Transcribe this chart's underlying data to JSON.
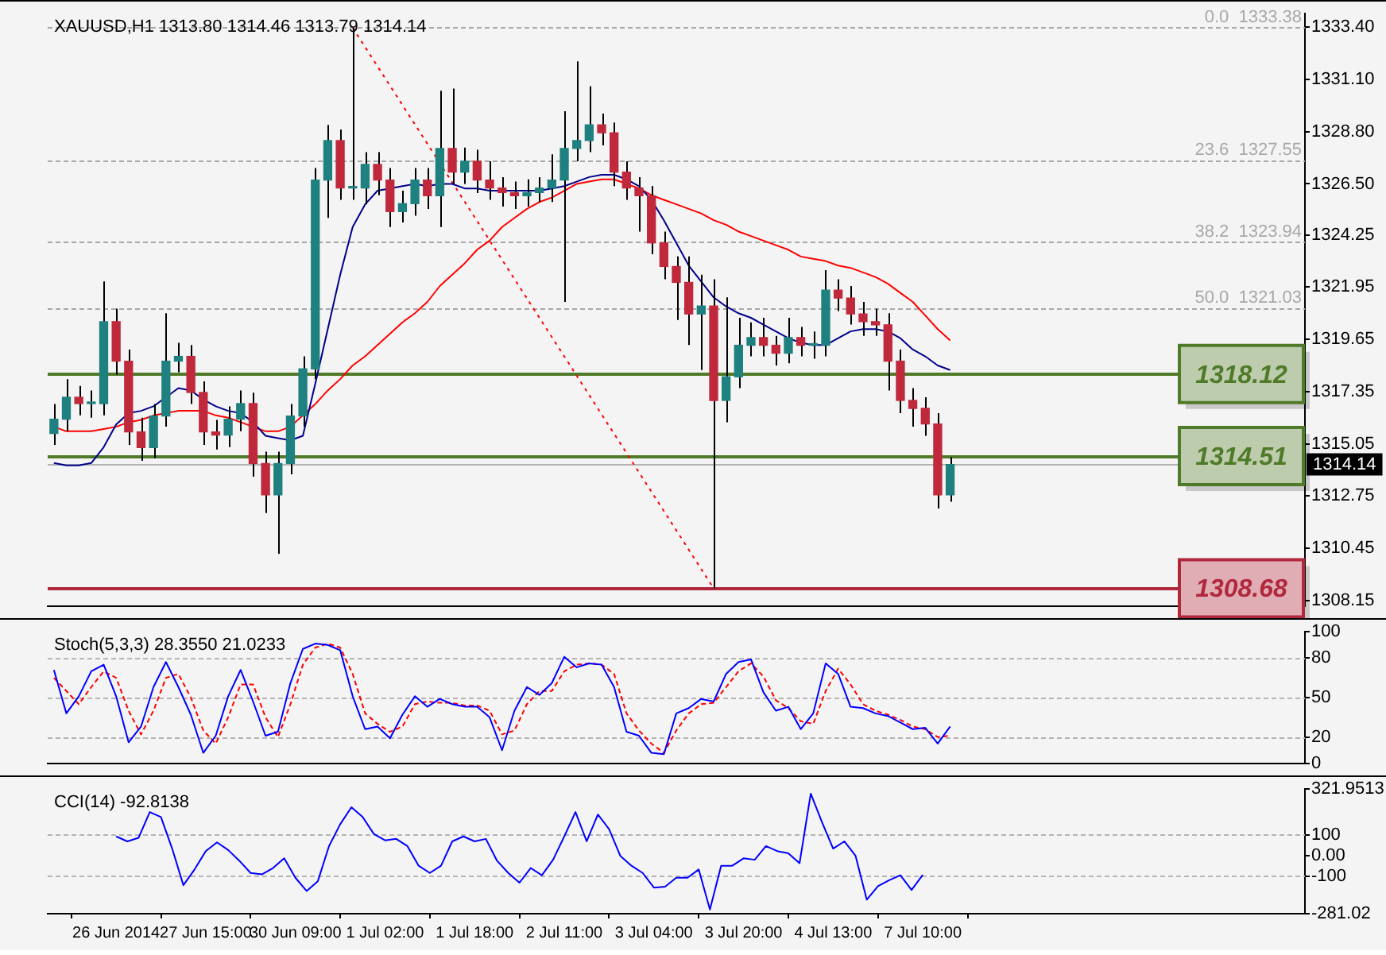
{
  "chart_data": [
    {
      "type": "candlestick",
      "title": "XAUUSD,H1 1313.80 1314.46 1313.79 1314.14",
      "tick_labels": "y",
      "categories": [
        null,
        null,
        null,
        null,
        null,
        null,
        null,
        null,
        null,
        null,
        null,
        null,
        null,
        null,
        null,
        null,
        null,
        null,
        null,
        null,
        null,
        null,
        null,
        null,
        null,
        null,
        null,
        null,
        null,
        null,
        null,
        null,
        null,
        null,
        null,
        null,
        null,
        null,
        null,
        null,
        null,
        null,
        null,
        null,
        null,
        null,
        null,
        null,
        null,
        null,
        null,
        null,
        null,
        null,
        null,
        null,
        null,
        null,
        null,
        null,
        null,
        null,
        null,
        null,
        null,
        null,
        null,
        null,
        null,
        null,
        null,
        null,
        null
      ],
      "ohlc": [
        [
          1315.5,
          1316.8,
          1315.0,
          1316.13
        ],
        [
          1316.13,
          1317.9,
          1315.6,
          1317.1
        ],
        [
          1317.1,
          1317.6,
          1316.3,
          1316.82
        ],
        [
          1316.82,
          1317.4,
          1316.2,
          1316.82
        ],
        [
          1316.82,
          1322.2,
          1316.3,
          1320.43
        ],
        [
          1320.43,
          1321.0,
          1318.1,
          1318.69
        ],
        [
          1318.69,
          1319.2,
          1315.0,
          1315.57
        ],
        [
          1315.57,
          1316.2,
          1314.3,
          1314.88
        ],
        [
          1314.88,
          1316.8,
          1314.4,
          1316.27
        ],
        [
          1316.27,
          1320.8,
          1315.8,
          1318.69
        ],
        [
          1318.69,
          1319.5,
          1318.2,
          1318.9
        ],
        [
          1318.9,
          1319.4,
          1316.8,
          1317.31
        ],
        [
          1317.31,
          1317.8,
          1315.0,
          1315.57
        ],
        [
          1315.57,
          1316.1,
          1314.8,
          1315.43
        ],
        [
          1315.43,
          1316.7,
          1314.9,
          1316.13
        ],
        [
          1316.13,
          1317.4,
          1315.6,
          1316.82
        ],
        [
          1316.82,
          1317.3,
          1313.6,
          1314.18
        ],
        [
          1314.18,
          1314.7,
          1312.0,
          1312.8
        ],
        [
          1312.8,
          1314.7,
          1310.2,
          1314.18
        ],
        [
          1314.18,
          1316.8,
          1313.7,
          1316.27
        ],
        [
          1316.27,
          1318.9,
          1315.8,
          1318.35
        ],
        [
          1318.35,
          1327.2,
          1317.9,
          1326.67
        ],
        [
          1326.67,
          1329.1,
          1325.0,
          1328.41
        ],
        [
          1328.41,
          1328.9,
          1325.8,
          1326.32
        ],
        [
          1326.32,
          1333.38,
          1325.8,
          1326.32
        ],
        [
          1326.32,
          1327.9,
          1325.6,
          1327.36
        ],
        [
          1327.36,
          1327.9,
          1326.0,
          1326.67
        ],
        [
          1326.67,
          1327.2,
          1324.6,
          1325.28
        ],
        [
          1325.28,
          1326.2,
          1324.8,
          1325.63
        ],
        [
          1325.63,
          1327.2,
          1325.1,
          1326.67
        ],
        [
          1326.67,
          1327.2,
          1325.4,
          1325.98
        ],
        [
          1325.98,
          1330.6,
          1324.6,
          1328.06
        ],
        [
          1328.06,
          1330.7,
          1326.5,
          1327.02
        ],
        [
          1327.02,
          1328.1,
          1326.5,
          1327.5
        ],
        [
          1327.5,
          1328.0,
          1326.1,
          1326.67
        ],
        [
          1326.67,
          1327.5,
          1325.8,
          1326.32
        ],
        [
          1326.32,
          1326.8,
          1325.5,
          1326.12
        ],
        [
          1326.12,
          1326.6,
          1325.4,
          1325.98
        ],
        [
          1325.98,
          1326.7,
          1325.5,
          1326.12
        ],
        [
          1326.12,
          1326.8,
          1325.7,
          1326.32
        ],
        [
          1326.32,
          1327.8,
          1325.7,
          1326.67
        ],
        [
          1326.67,
          1329.7,
          1321.3,
          1328.06
        ],
        [
          1328.06,
          1331.9,
          1327.5,
          1328.41
        ],
        [
          1328.41,
          1330.8,
          1327.9,
          1329.1
        ],
        [
          1329.1,
          1329.6,
          1328.2,
          1328.75
        ],
        [
          1328.75,
          1329.2,
          1326.4,
          1327.02
        ],
        [
          1327.02,
          1327.5,
          1325.8,
          1326.32
        ],
        [
          1326.32,
          1326.8,
          1324.4,
          1325.98
        ],
        [
          1325.98,
          1326.4,
          1323.4,
          1323.9
        ],
        [
          1323.9,
          1324.4,
          1322.3,
          1322.86
        ],
        [
          1322.86,
          1323.3,
          1320.5,
          1322.16
        ],
        [
          1322.16,
          1323.3,
          1319.4,
          1320.77
        ],
        [
          1320.77,
          1322.5,
          1318.3,
          1321.12
        ],
        [
          1321.12,
          1322.3,
          1308.68,
          1316.96
        ],
        [
          1316.96,
          1321.5,
          1316.0,
          1318.0
        ],
        [
          1318.0,
          1320.6,
          1317.5,
          1319.39
        ],
        [
          1319.39,
          1320.4,
          1318.9,
          1319.73
        ],
        [
          1319.73,
          1320.6,
          1318.9,
          1319.39
        ],
        [
          1319.39,
          1319.8,
          1318.5,
          1319.04
        ],
        [
          1319.04,
          1320.6,
          1318.6,
          1319.73
        ],
        [
          1319.73,
          1320.2,
          1318.9,
          1319.39
        ],
        [
          1319.39,
          1320.0,
          1318.8,
          1319.39
        ],
        [
          1319.39,
          1322.7,
          1318.9,
          1321.82
        ],
        [
          1321.82,
          1322.3,
          1320.9,
          1321.47
        ],
        [
          1321.47,
          1322.0,
          1320.3,
          1320.77
        ],
        [
          1320.77,
          1321.3,
          1319.8,
          1320.43
        ],
        [
          1320.43,
          1321.0,
          1319.8,
          1320.29
        ],
        [
          1320.29,
          1320.8,
          1317.4,
          1318.69
        ],
        [
          1318.69,
          1319.2,
          1316.4,
          1316.96
        ],
        [
          1316.96,
          1317.5,
          1315.8,
          1316.61
        ],
        [
          1316.61,
          1317.1,
          1315.4,
          1315.92
        ],
        [
          1315.92,
          1316.4,
          1312.2,
          1312.8
        ],
        [
          1312.8,
          1314.46,
          1312.5,
          1314.14
        ]
      ],
      "series": [
        {
          "type": "line",
          "color": "#00008b",
          "values": [
            1314.2,
            1314.1,
            1314.1,
            1314.2,
            1314.9,
            1315.9,
            1316.4,
            1316.5,
            1316.7,
            1317.1,
            1317.5,
            1317.4,
            1317.0,
            1316.7,
            1316.5,
            1316.4,
            1316.0,
            1315.4,
            1315.3,
            1315.2,
            1315.4,
            1317.7,
            1320.1,
            1322.5,
            1324.6,
            1325.6,
            1326.2,
            1326.3,
            1326.4,
            1326.5,
            1326.4,
            1326.5,
            1326.5,
            1326.3,
            1326.3,
            1326.2,
            1326.2,
            1326.2,
            1326.2,
            1326.2,
            1326.3,
            1326.4,
            1326.6,
            1326.8,
            1326.9,
            1326.9,
            1326.7,
            1326.4,
            1325.8,
            1324.9,
            1323.9,
            1322.9,
            1322.2,
            1321.5,
            1321.1,
            1320.8,
            1320.6,
            1320.3,
            1320.0,
            1319.7,
            1319.5,
            1319.4,
            1319.4,
            1319.7,
            1320.0,
            1320.1,
            1320.1,
            1320.0,
            1319.7,
            1319.2,
            1318.9,
            1318.5,
            1318.3
          ]
        },
        {
          "type": "line",
          "color": "#ff0000",
          "values": [
            1315.8,
            1315.6,
            1315.6,
            1315.6,
            1315.7,
            1315.8,
            1316.0,
            1316.1,
            1316.3,
            1316.4,
            1316.5,
            1316.5,
            1316.5,
            1316.3,
            1316.2,
            1316.0,
            1315.8,
            1315.6,
            1315.6,
            1315.8,
            1316.3,
            1316.8,
            1317.4,
            1317.9,
            1318.5,
            1318.9,
            1319.4,
            1319.9,
            1320.4,
            1320.8,
            1321.3,
            1322.0,
            1322.5,
            1323.0,
            1323.6,
            1324.0,
            1324.6,
            1325.0,
            1325.4,
            1325.7,
            1325.9,
            1326.2,
            1326.5,
            1326.6,
            1326.7,
            1326.7,
            1326.5,
            1326.3,
            1326.0,
            1325.8,
            1325.6,
            1325.4,
            1325.2,
            1324.9,
            1324.7,
            1324.4,
            1324.2,
            1324.0,
            1323.8,
            1323.6,
            1323.3,
            1323.2,
            1323.1,
            1322.9,
            1322.8,
            1322.6,
            1322.4,
            1322.1,
            1321.7,
            1321.3,
            1320.7,
            1320.1,
            1319.6
          ]
        },
        {
          "type": "line",
          "color": "#ff0000",
          "line_style": "dotted",
          "values": [
            null,
            null,
            null,
            null,
            null,
            null,
            null,
            null,
            null,
            null,
            null,
            null,
            null,
            null,
            null,
            null,
            null,
            null,
            null,
            null,
            null,
            null,
            null,
            null,
            1333.38,
            null,
            null,
            null,
            null,
            null,
            null,
            null,
            null,
            null,
            null,
            null,
            null,
            null,
            null,
            null,
            null,
            null,
            null,
            null,
            null,
            null,
            null,
            null,
            null,
            null,
            null,
            null,
            null,
            1308.68,
            null,
            null,
            null,
            null,
            null,
            null,
            null,
            null,
            null,
            null,
            null,
            null,
            null,
            null,
            null,
            null,
            null,
            null,
            null
          ]
        }
      ],
      "ylim": [
        1307.9,
        1334.0
      ],
      "yticks": [
        {
          "value": 1308.15,
          "label": "1308.15"
        },
        {
          "value": 1310.45,
          "label": "1310.45"
        },
        {
          "value": 1312.75,
          "label": "1312.75"
        },
        {
          "value": 1315.05,
          "label": "1315.05"
        },
        {
          "value": 1317.35,
          "label": "1317.35"
        },
        {
          "value": 1319.65,
          "label": "1319.65"
        },
        {
          "value": 1321.95,
          "label": "1321.95"
        },
        {
          "value": 1324.25,
          "label": "1324.25"
        },
        {
          "value": 1326.5,
          "label": "1326.50"
        },
        {
          "value": 1328.8,
          "label": "1328.80"
        },
        {
          "value": 1331.1,
          "label": "1331.10"
        },
        {
          "value": 1333.4,
          "label": "1333.40"
        }
      ],
      "ref_lines": [
        {
          "axis": "y",
          "value": 1333.38,
          "label": "0.0  1333.38",
          "color": "#a8a8a8",
          "line_style": "dashed"
        },
        {
          "axis": "y",
          "value": 1327.55,
          "label": "23.6  1327.55",
          "color": "#a8a8a8",
          "line_style": "dashed"
        },
        {
          "axis": "y",
          "value": 1323.94,
          "label": "38.2  1323.94",
          "color": "#a8a8a8",
          "line_style": "dashed"
        },
        {
          "axis": "y",
          "value": 1321.03,
          "label": "50.0  1321.03",
          "color": "#a8a8a8",
          "line_style": "dashed"
        },
        {
          "axis": "y",
          "value": 1318.12,
          "label": "1318.12",
          "color": "#4f7a28",
          "line_style": "solid"
        },
        {
          "axis": "y",
          "value": 1314.51,
          "label": "1314.51",
          "color": "#4f7a28",
          "line_style": "solid"
        },
        {
          "axis": "y",
          "value": 1308.68,
          "label": "1308.68",
          "color": "#b0283c",
          "line_style": "solid"
        },
        {
          "axis": "y",
          "value": 1314.14,
          "label": "1314.14",
          "color": "#b4b4b4"
        }
      ]
    },
    {
      "type": "line",
      "title": "Stoch(5,3,3) 28.3550 21.0233",
      "tick_labels": "y",
      "categories": [
        null,
        null,
        null,
        null,
        null,
        null,
        null,
        null,
        null,
        null,
        null,
        null,
        null,
        null,
        null,
        null,
        null,
        null,
        null,
        null,
        null,
        null,
        null,
        null,
        null,
        null,
        null,
        null,
        null,
        null,
        null,
        null,
        null,
        null,
        null,
        null,
        null,
        null,
        null,
        null,
        null,
        null,
        null,
        null,
        null,
        null,
        null,
        null,
        null,
        null,
        null,
        null,
        null,
        null,
        null,
        null,
        null,
        null,
        null,
        null,
        null,
        null,
        null,
        null,
        null,
        null,
        null,
        null,
        null,
        null,
        null,
        null,
        null
      ],
      "series": [
        {
          "color": "#0000ff",
          "values": [
            71,
            38,
            51,
            70,
            75,
            51,
            16,
            28,
            58,
            77,
            58,
            37,
            8,
            21,
            51,
            71,
            47,
            21,
            24,
            61,
            87,
            91,
            90,
            86,
            51,
            26,
            28,
            19,
            37,
            51,
            43,
            49,
            45,
            43,
            43,
            35,
            10,
            40,
            58,
            52,
            61,
            81,
            73,
            76,
            75,
            58,
            24,
            21,
            8,
            7,
            38,
            42,
            49,
            47,
            68,
            77,
            79,
            54,
            40,
            43,
            26,
            38,
            76,
            68,
            43,
            42,
            38,
            36,
            31,
            26,
            27,
            15,
            28
          ]
        },
        {
          "color": "#ff0000",
          "line_style": "dashed",
          "values": [
            65,
            55,
            45,
            58,
            70,
            65,
            40,
            22,
            40,
            65,
            68,
            50,
            25,
            15,
            35,
            60,
            60,
            35,
            20,
            45,
            75,
            88,
            91,
            88,
            68,
            38,
            30,
            24,
            28,
            45,
            47,
            46,
            46,
            44,
            44,
            40,
            22,
            25,
            45,
            55,
            55,
            70,
            75,
            76,
            75,
            68,
            38,
            25,
            15,
            8,
            25,
            38,
            45,
            46,
            58,
            70,
            76,
            66,
            48,
            42,
            32,
            30,
            55,
            72,
            60,
            45,
            40,
            37,
            33,
            28,
            26,
            20,
            21
          ]
        }
      ],
      "ylim": [
        0,
        100
      ],
      "yticks": [
        0,
        20,
        50,
        80,
        100
      ],
      "ref_lines": [
        {
          "axis": "y",
          "value": 80,
          "color": "#b4b4b4",
          "line_style": "dashed"
        },
        {
          "axis": "y",
          "value": 50,
          "color": "#b4b4b4",
          "line_style": "dashed"
        },
        {
          "axis": "y",
          "value": 20,
          "color": "#b4b4b4",
          "line_style": "dashed"
        }
      ]
    },
    {
      "type": "line",
      "title": "CCI(14) -92.8138",
      "categories": [
        "26 Jun 2014",
        null,
        null,
        null,
        null,
        null,
        null,
        null,
        "27 Jun 15:00",
        null,
        null,
        null,
        null,
        null,
        null,
        null,
        "30 Jun 09:00",
        null,
        null,
        null,
        null,
        null,
        null,
        null,
        "1 Jul 02:00",
        null,
        null,
        null,
        null,
        null,
        null,
        null,
        "1 Jul 18:00",
        null,
        null,
        null,
        null,
        null,
        null,
        null,
        "2 Jul 11:00",
        null,
        null,
        null,
        null,
        null,
        null,
        null,
        "3 Jul 04:00",
        null,
        null,
        null,
        null,
        null,
        null,
        null,
        "3 Jul 20:00",
        null,
        null,
        null,
        null,
        null,
        null,
        null,
        "4 Jul 13:00",
        null,
        null,
        null,
        null,
        null,
        null,
        null,
        "7 Jul 10:00"
      ],
      "series": [
        {
          "color": "#0000ff",
          "values": [
            93,
            69,
            86,
            211,
            187,
            34,
            -143,
            -67,
            22,
            64,
            27,
            -25,
            -84,
            -91,
            -60,
            -13,
            -107,
            -171,
            -124,
            46,
            152,
            234,
            187,
            105,
            74,
            81,
            46,
            -49,
            -84,
            -49,
            69,
            93,
            69,
            81,
            -25,
            -84,
            -131,
            -60,
            -95,
            -20,
            93,
            211,
            69,
            199,
            128,
            -1,
            -49,
            -84,
            -155,
            -150,
            -107,
            -107,
            -67,
            -261,
            -49,
            -49,
            -13,
            -20,
            46,
            22,
            11,
            -37,
            300,
            163,
            34,
            69,
            -1,
            -213,
            -148,
            -119,
            -95,
            -166,
            -93
          ]
        }
      ],
      "ylim": [
        -281.02,
        321.9513
      ],
      "yticks": [
        -281.02,
        -100,
        {
          "value": 0,
          "label": "0.00"
        },
        100,
        321.9513
      ],
      "ref_lines": [
        {
          "axis": "y",
          "value": 100,
          "color": "#b4b4b4",
          "line_style": "dashed"
        },
        {
          "axis": "y",
          "value": -100,
          "color": "#b4b4b4",
          "line_style": "dashed"
        }
      ]
    }
  ]
}
